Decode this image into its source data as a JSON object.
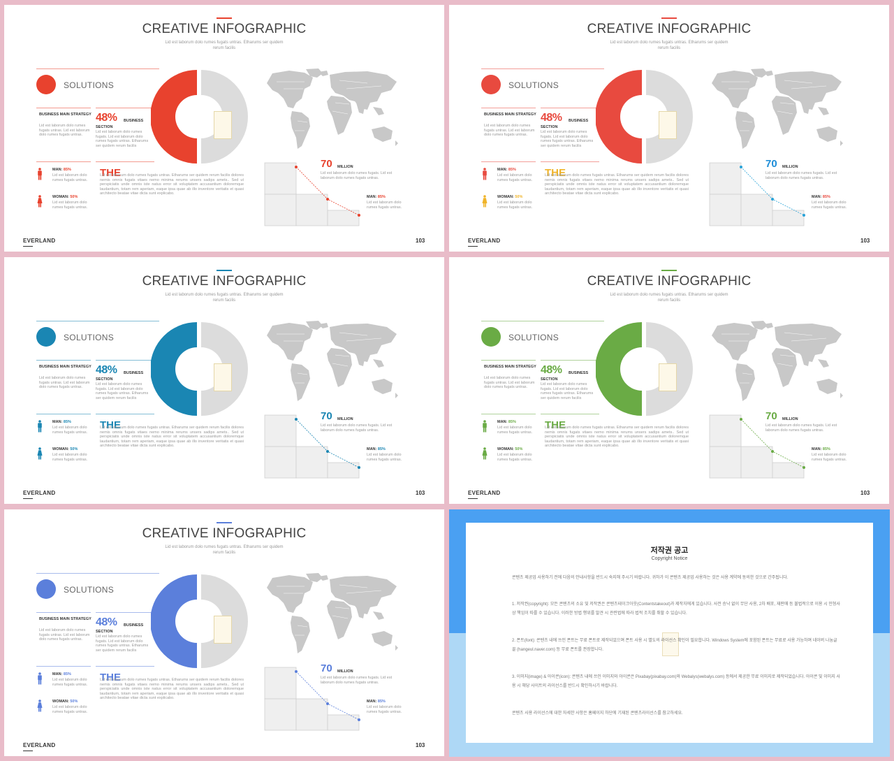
{
  "slides": [
    {
      "accent": "#e8422e",
      "person_man": "#e8422e",
      "person_woman": "#e8422e",
      "the_color": "#e8422e",
      "title": "CREATIVE INFOGRAPHIC",
      "subtitle": "Lid est laborum dolo rumes fugats untras. Etharums ser quidem rerum facilis",
      "solutions": "SOLUTIONS",
      "strategy_label": "BUSINESS MAIN STRATEGY",
      "strategy_text": "Lid est laborum dolo rumes fugats untras. Lid est laborum dolo rumes fugats untras.",
      "percent": "48%",
      "business": "BUSINESS",
      "section": "SECTION",
      "section_text": "Lid est laborum dolo rumes fugats. Lid est laborum dolo rumes fugats untras. Etharums ser quidem rerum facilis",
      "man_label": "MAN:",
      "man_value": "85%",
      "man_text": "Lid est laborum dolo rumes fugats untras.",
      "woman_label": "WOMAN:",
      "woman_value": "50%",
      "woman_text": "Lid est laborum dolo rumes fugats untras.",
      "the": "THE",
      "the_text": "Lid est laborum dolo rumes fugats untras. Etharums ser quidem rerum facilis dolores nemis omnis fugats vitaes nemo minima rerums unsers sadips amets.. Sed ut perspiciatis unde omnis iste natus error sit voluptatem accusantium doloremque laudantium, totam rem aperiam, eaque ipsa quae ab illo inventore veritatis et quasi architecto beatae vitae dicta sunt explicabo.",
      "million_value": "70",
      "million": "MILLION",
      "million_text": "Lid est laborum dolo rumes fugats. Lid est laborum dolo rumes fugats untras.",
      "chart_man_label": "MAN:",
      "chart_man_value": "85%",
      "chart_man_text": "Lid est laborum dolo rumes fugats untras.",
      "brand": "EVERLAND",
      "page": "103"
    },
    {
      "accent": "#e84a3f",
      "person_man": "#e84a3f",
      "person_woman": "#f0b429",
      "the_color": "#f0b429",
      "man_color": "#e84a3f",
      "woman_color": "#f0b429",
      "dot_color": "#29a3d8",
      "percent_color": "#e84a3f",
      "million_color": "#1f8ed8",
      "title": "CREATIVE INFOGRAPHIC",
      "subtitle": "Lid est laborum dolo rumes fugats untras. Etharums ser quidem rerum facilis",
      "solutions": "SOLUTIONS",
      "strategy_label": "BUSINESS MAIN STRATEGY",
      "strategy_text": "Lid est laborum dolo rumes fugats untras. Lid est laborum dolo rumes fugats untras.",
      "percent": "48%",
      "business": "BUSINESS",
      "section": "SECTION",
      "section_text": "Lid est laborum dolo rumes fugats. Lid est laborum dolo rumes fugats untras. Etharums ser quidem rerum facilis",
      "man_label": "MAN:",
      "man_value": "85%",
      "man_text": "Lid est laborum dolo rumes fugats untras.",
      "woman_label": "WOMAN:",
      "woman_value": "50%",
      "woman_text": "Lid est laborum dolo rumes fugats untras.",
      "the": "THE",
      "the_text": "Lid est laborum dolo rumes fugats untras. Etharums ser quidem rerum facilis dolores nemis omnis fugats vitaes nemo minima rerums unsers sadips amets.. Sed ut perspiciatis unde omnis iste natus error sit voluptatem accusantium doloremque laudantium, totam rem aperiam, eaque ipsa quae ab illo inventore veritatis et quasi architecto beatae vitae dicta sunt explicabo.",
      "million_value": "70",
      "million": "MILLION",
      "million_text": "Lid est laborum dolo rumes fugats. Lid est laborum dolo rumes fugats untras.",
      "chart_man_label": "MAN:",
      "chart_man_value": "85%",
      "chart_man_text": "Lid est laborum dolo rumes fugats untras.",
      "brand": "EVERLAND",
      "page": "103"
    },
    {
      "accent": "#1a86b3",
      "person_man": "#1a86b3",
      "person_woman": "#1a86b3",
      "the_color": "#1a86b3",
      "title": "CREATIVE INFOGRAPHIC",
      "subtitle": "Lid est laborum dolo rumes fugats untras. Etharums ser quidem rerum facilis",
      "solutions": "SOLUTIONS",
      "strategy_label": "BUSINESS MAIN STRATEGY",
      "strategy_text": "Lid est laborum dolo rumes fugats untras. Lid est laborum dolo rumes fugats untras.",
      "percent": "48%",
      "business": "BUSINESS",
      "section": "SECTION",
      "section_text": "Lid est laborum dolo rumes fugats. Lid est laborum dolo rumes fugats untras. Etharums ser quidem rerum facilis",
      "man_label": "MAN:",
      "man_value": "85%",
      "man_text": "Lid est laborum dolo rumes fugats untras.",
      "woman_label": "WOMAN:",
      "woman_value": "50%",
      "woman_text": "Lid est laborum dolo rumes fugats untras.",
      "the": "THE",
      "the_text": "Lid est laborum dolo rumes fugats untras. Etharums ser quidem rerum facilis dolores nemis omnis fugats vitaes nemo minima rerums unsers sadips amets.. Sed ut perspiciatis unde omnis iste natus error sit voluptatem accusantium doloremque laudantium, totam rem aperiam, eaque ipsa quae ab illo inventore veritatis et quasi architecto beatae vitae dicta sunt explicabo.",
      "million_value": "70",
      "million": "MILLION",
      "million_text": "Lid est laborum dolo rumes fugats. Lid est laborum dolo rumes fugats untras.",
      "chart_man_label": "MAN:",
      "chart_man_value": "85%",
      "chart_man_text": "Lid est laborum dolo rumes fugats untras.",
      "brand": "EVERLAND",
      "page": "103"
    },
    {
      "accent": "#6aab45",
      "person_man": "#6aab45",
      "person_woman": "#6aab45",
      "the_color": "#6aab45",
      "title": "CREATIVE INFOGRAPHIC",
      "subtitle": "Lid est laborum dolo rumes fugats untras. Etharums ser quidem rerum facilis",
      "solutions": "SOLUTIONS",
      "strategy_label": "BUSINESS MAIN STRATEGY",
      "strategy_text": "Lid est laborum dolo rumes fugats untras. Lid est laborum dolo rumes fugats untras.",
      "percent": "48%",
      "business": "BUSINESS",
      "section": "SECTION",
      "section_text": "Lid est laborum dolo rumes fugats. Lid est laborum dolo rumes fugats untras. Etharums ser quidem rerum facilis",
      "man_label": "MAN:",
      "man_value": "85%",
      "man_text": "Lid est laborum dolo rumes fugats untras.",
      "woman_label": "WOMAN:",
      "woman_value": "50%",
      "woman_text": "Lid est laborum dolo rumes fugats untras.",
      "the": "THE",
      "the_text": "Lid est laborum dolo rumes fugats untras. Etharums ser quidem rerum facilis dolores nemis omnis fugats vitaes nemo minima rerums unsers sadips amets.. Sed ut perspiciatis unde omnis iste natus error sit voluptatem accusantium doloremque laudantium, totam rem aperiam, eaque ipsa quae ab illo inventore veritatis et quasi architecto beatae vitae dicta sunt explicabo.",
      "million_value": "70",
      "million": "MILLION",
      "million_text": "Lid est laborum dolo rumes fugats. Lid est laborum dolo rumes fugats untras.",
      "chart_man_label": "MAN:",
      "chart_man_value": "85%",
      "chart_man_text": "Lid est laborum dolo rumes fugats untras.",
      "brand": "EVERLAND",
      "page": "103"
    },
    {
      "accent": "#5b7fdb",
      "person_man": "#5b7fdb",
      "person_woman": "#5b7fdb",
      "the_color": "#5b7fdb",
      "title": "CREATIVE INFOGRAPHIC",
      "subtitle": "Lid est laborum dolo rumes fugats untras. Etharums ser quidem rerum facilis",
      "solutions": "SOLUTIONS",
      "strategy_label": "BUSINESS MAIN STRATEGY",
      "strategy_text": "Lid est laborum dolo rumes fugats untras. Lid est laborum dolo rumes fugats untras.",
      "percent": "48%",
      "business": "BUSINESS",
      "section": "SECTION",
      "section_text": "Lid est laborum dolo rumes fugats. Lid est laborum dolo rumes fugats untras. Etharums ser quidem rerum facilis",
      "man_label": "MAN:",
      "man_value": "85%",
      "man_text": "Lid est laborum dolo rumes fugats untras.",
      "woman_label": "WOMAN:",
      "woman_value": "50%",
      "woman_text": "Lid est laborum dolo rumes fugats untras.",
      "the": "THE",
      "the_text": "Lid est laborum dolo rumes fugats untras. Etharums ser quidem rerum facilis dolores nemis omnis fugats vitaes nemo minima rerums unsers sadips amets.. Sed ut perspiciatis unde omnis iste natus error sit voluptatem accusantium doloremque laudantium, totam rem aperiam, eaque ipsa quae ab illo inventore veritatis et quasi architecto beatae vitae dicta sunt explicabo.",
      "million_value": "70",
      "million": "MILLION",
      "million_text": "Lid est laborum dolo rumes fugats. Lid est laborum dolo rumes fugats untras.",
      "chart_man_label": "MAN:",
      "chart_man_value": "85%",
      "chart_man_text": "Lid est laborum dolo rumes fugats untras.",
      "brand": "EVERLAND",
      "page": "103"
    }
  ],
  "notice": {
    "title": "저작권 공고",
    "subtitle": "Copyright Notice",
    "intro": "콘텐츠 제공업 사용하기 전에 다음의 안내사항을 반드시 숙지해 주시기 바랍니다. 귀하가 이 콘텐츠 제공업 사용하는 것은 사용 계약에 동의한 것으로 간주됩니다.",
    "p1": "1. 저작권(copyright): 모든 콘텐츠의 소유 및 저작권은 콘텐츠테이크아웃(Contentstakeout)과 제작자에게 있습니다. 사전 승낙 없이 무단 사용, 2차 배포, 재판매 등 불법적으로 이용 시 민형사상 책임이 따를 수 있습니다. 이러한 방법 행위를 발견 시 관련법에 따라 법적 조치를 취할 수 있습니다.",
    "p2": "2. 폰트(font): 콘텐츠 내에 쓰인 폰트는 무료 폰트로 제작되었으며 폰트 사용 시 별도의 라이선스 확인이 필요합니다. Windows System에 포함된 폰트는 무료로 사용 가능하며 네이버 나눔글꼴 (hangeul.naver.com) 등 무료 폰트를 권장합니다.",
    "p3": "3. 이미지(image) & 아이콘(icon): 콘텐츠 내에 쓰인 이미지와 아이콘은 Pixabay(pixabay.com)와 Webalys(webalys.com) 등에서 제공한 무료 이미지로 제작되었습니다. 아이콘 및 이미지 사용 시 해당 사이트의 라이선스를 반드시 확인하시기 바랍니다.",
    "closing": "콘텐츠 사용 라이선스에 대한 자세한 사항은 홈페이지 하단에 기재된 콘텐츠라이선스를 참고하세요."
  }
}
